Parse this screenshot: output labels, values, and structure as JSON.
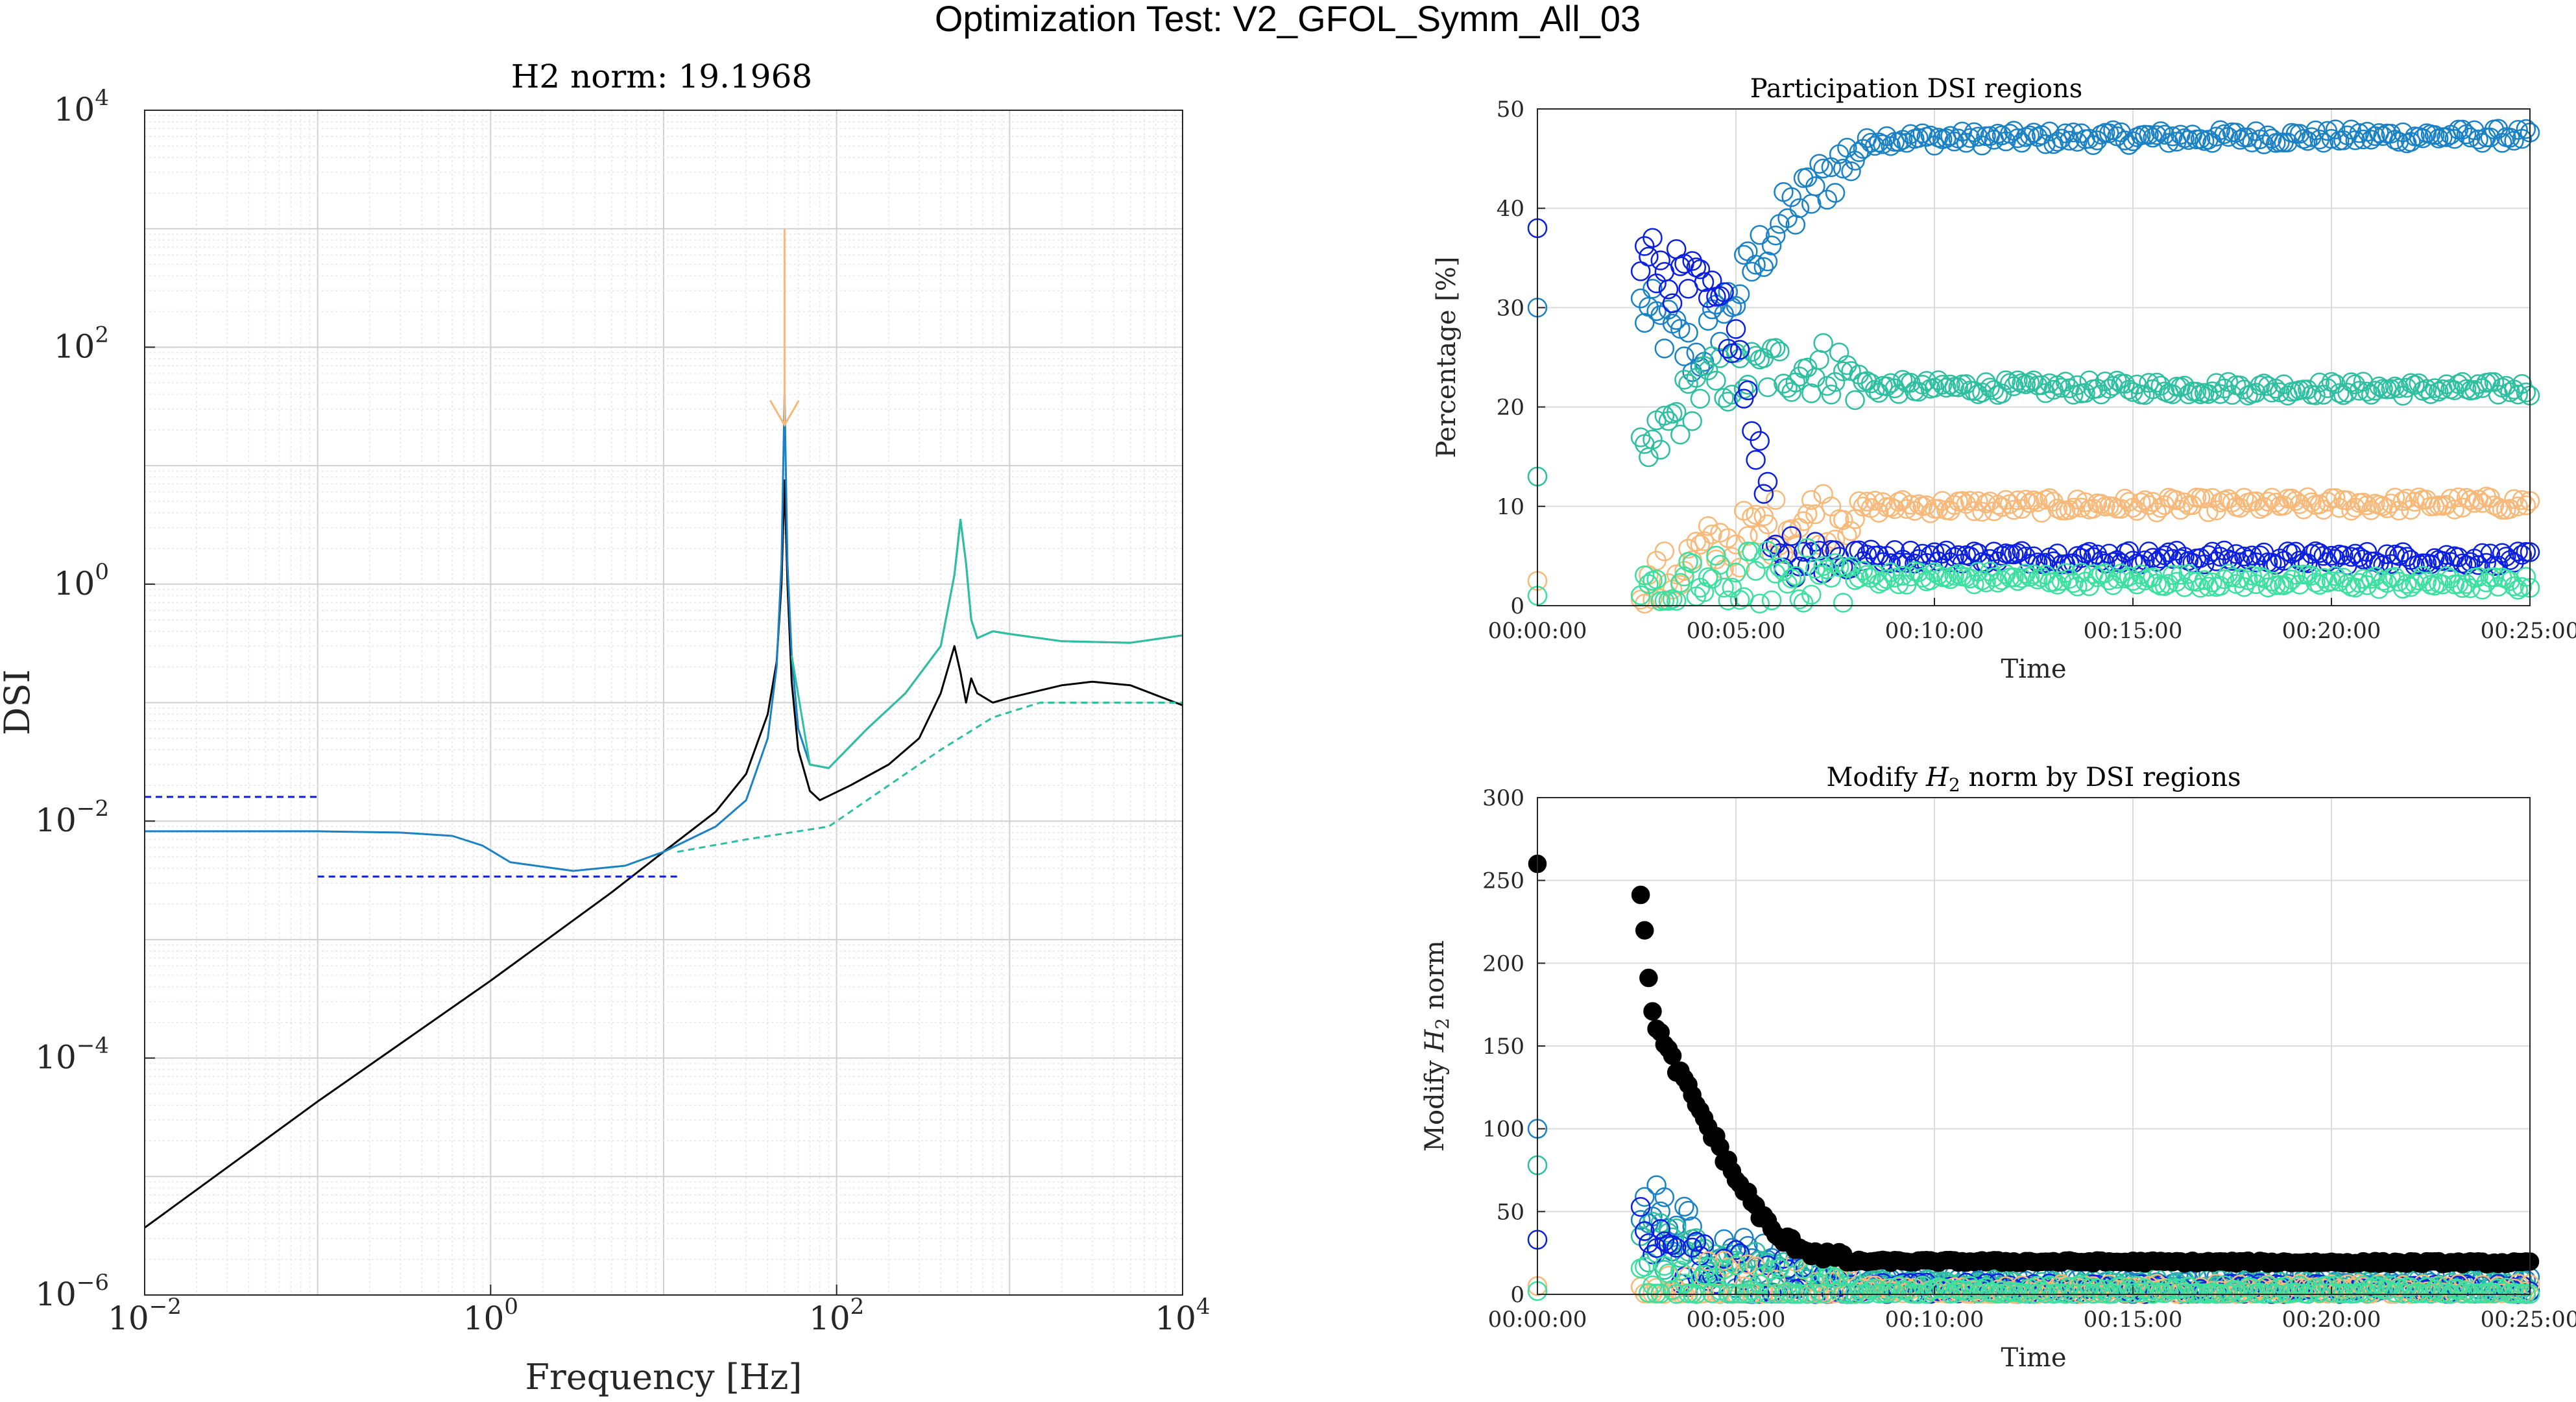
{
  "figure": {
    "title": "Optimization Test: V2_GFOL_Symm_All_03"
  },
  "colors": {
    "c_blue": "#0B1FE0",
    "c_mid": "#1A82C4",
    "c_teal": "#2DBFA0",
    "c_green": "#3BE0A0",
    "c_orange": "#F8B878",
    "c_black": "#000000",
    "grid": "#DCDCDC"
  },
  "chart_data": [
    {
      "id": "dsi",
      "type": "line",
      "title": "H2 norm: 19.1968",
      "xlabel": "Frequency [Hz]",
      "ylabel": "DSI",
      "xscale": "log",
      "yscale": "log",
      "xlim": [
        0.01,
        10000
      ],
      "ylim": [
        1e-06,
        10000
      ],
      "xticks": [
        {
          "v": 0.01,
          "base": "10",
          "exp": "−2"
        },
        {
          "v": 1,
          "base": "10",
          "exp": "0"
        },
        {
          "v": 100,
          "base": "10",
          "exp": "2"
        },
        {
          "v": 10000,
          "base": "10",
          "exp": "4"
        }
      ],
      "yticks": [
        {
          "v": 1e-06,
          "base": "10",
          "exp": "−6"
        },
        {
          "v": 0.0001,
          "base": "10",
          "exp": "−4"
        },
        {
          "v": 0.01,
          "base": "10",
          "exp": "−2"
        },
        {
          "v": 1,
          "base": "10",
          "exp": "0"
        },
        {
          "v": 100,
          "base": "10",
          "exp": "2"
        },
        {
          "v": 10000,
          "base": "10",
          "exp": "4"
        }
      ],
      "grid": true,
      "series": [
        {
          "color": "c_black",
          "style": "solid",
          "points": [
            [
              0.01,
              3.7e-06
            ],
            [
              0.1,
              4.3e-05
            ],
            [
              1,
              0.00045
            ],
            [
              5,
              0.0025
            ],
            [
              10,
              0.0055
            ],
            [
              20,
              0.012
            ],
            [
              30,
              0.025
            ],
            [
              40,
              0.08
            ],
            [
              45,
              0.22
            ],
            [
              48,
              1.0
            ],
            [
              50,
              7.5
            ],
            [
              52,
              1.0
            ],
            [
              55,
              0.15
            ],
            [
              60,
              0.04
            ],
            [
              70,
              0.018
            ],
            [
              80,
              0.015
            ],
            [
              120,
              0.02
            ],
            [
              200,
              0.03
            ],
            [
              300,
              0.05
            ],
            [
              400,
              0.12
            ],
            [
              480,
              0.3
            ],
            [
              520,
              0.18
            ],
            [
              560,
              0.1
            ],
            [
              600,
              0.16
            ],
            [
              650,
              0.12
            ],
            [
              800,
              0.1
            ],
            [
              1000,
              0.11
            ],
            [
              2000,
              0.14
            ],
            [
              3000,
              0.15
            ],
            [
              5000,
              0.14
            ],
            [
              10000,
              0.095
            ]
          ]
        },
        {
          "color": "c_mid",
          "style": "solid",
          "points": [
            [
              0.01,
              0.0082
            ],
            [
              0.1,
              0.0082
            ],
            [
              0.3,
              0.008
            ],
            [
              0.6,
              0.0075
            ],
            [
              0.9,
              0.0062
            ],
            [
              1.3,
              0.0045
            ],
            [
              3,
              0.0038
            ],
            [
              6,
              0.0042
            ],
            [
              10,
              0.0055
            ],
            [
              20,
              0.009
            ],
            [
              30,
              0.015
            ],
            [
              40,
              0.05
            ],
            [
              45,
              0.2
            ],
            [
              48,
              1.5
            ],
            [
              50,
              40
            ],
            [
              52,
              1.5
            ],
            [
              55,
              0.25
            ],
            [
              60,
              0.06
            ],
            [
              70,
              0.03
            ],
            [
              90,
              0.028
            ],
            [
              150,
              0.06
            ],
            [
              250,
              0.12
            ],
            [
              400,
              0.3
            ],
            [
              480,
              1.2
            ],
            [
              520,
              3.5
            ],
            [
              560,
              1.5
            ],
            [
              600,
              0.5
            ],
            [
              650,
              0.35
            ],
            [
              800,
              0.4
            ],
            [
              1000,
              0.38
            ],
            [
              2000,
              0.33
            ],
            [
              5000,
              0.32
            ],
            [
              10000,
              0.37
            ]
          ]
        },
        {
          "color": "c_teal",
          "style": "solid",
          "points": [
            [
              55,
              0.25
            ],
            [
              70,
              0.03
            ],
            [
              90,
              0.028
            ],
            [
              150,
              0.06
            ],
            [
              250,
              0.12
            ],
            [
              400,
              0.3
            ],
            [
              480,
              1.2
            ],
            [
              520,
              3.5
            ],
            [
              560,
              1.5
            ],
            [
              600,
              0.5
            ],
            [
              650,
              0.35
            ],
            [
              800,
              0.4
            ],
            [
              1000,
              0.38
            ],
            [
              2000,
              0.33
            ],
            [
              5000,
              0.32
            ],
            [
              10000,
              0.37
            ]
          ]
        },
        {
          "color": "c_teal",
          "style": "dashed",
          "points": [
            [
              12,
              0.0055
            ],
            [
              30,
              0.007
            ],
            [
              90,
              0.009
            ],
            [
              200,
              0.02
            ],
            [
              400,
              0.04
            ],
            [
              800,
              0.075
            ],
            [
              1500,
              0.1
            ],
            [
              3000,
              0.1
            ],
            [
              10000,
              0.1
            ]
          ]
        },
        {
          "color": "c_blue",
          "style": "dashed",
          "points": [
            [
              0.01,
              0.016
            ],
            [
              0.1,
              0.016
            ]
          ]
        },
        {
          "color": "c_blue",
          "style": "dashed",
          "points": [
            [
              0.1,
              0.0034
            ],
            [
              12,
              0.0034
            ]
          ]
        },
        {
          "color": "c_orange",
          "style": "solid",
          "points": [
            [
              50,
              1000
            ],
            [
              50,
              22
            ]
          ]
        }
      ]
    },
    {
      "id": "participation",
      "type": "scatter",
      "title": "Participation DSI regions",
      "xlabel": "Time",
      "ylabel": "Percentage [%]",
      "xlim": [
        0,
        25
      ],
      "ylim": [
        0,
        50
      ],
      "xunit": "minutes",
      "xticklabels": [
        "00:00:00",
        "00:05:00",
        "00:10:00",
        "00:15:00",
        "00:20:00",
        "00:25:00"
      ],
      "yticks": [
        0,
        10,
        20,
        30,
        40,
        50
      ],
      "grid": true,
      "series": [
        {
          "color": "c_mid",
          "marker": "open-circle",
          "levels": [
            [
              0,
              30
            ],
            [
              2.6,
              30
            ],
            [
              4,
              25
            ],
            [
              6,
              38
            ],
            [
              7.5,
              44
            ],
            [
              8.5,
              47
            ],
            [
              25,
              47.3
            ]
          ],
          "first": 30
        },
        {
          "color": "c_teal",
          "marker": "open-circle",
          "levels": [
            [
              0,
              13
            ],
            [
              2.6,
              14
            ],
            [
              4,
              22
            ],
            [
              6,
              24
            ],
            [
              7.5,
              24
            ],
            [
              8.5,
              22
            ],
            [
              25,
              21.8
            ]
          ],
          "first": 13
        },
        {
          "color": "c_orange",
          "marker": "open-circle",
          "levels": [
            [
              0,
              2.5
            ],
            [
              2.6,
              1
            ],
            [
              4,
              5
            ],
            [
              6,
              8
            ],
            [
              7.5,
              9.5
            ],
            [
              8.5,
              10
            ],
            [
              25,
              10.3
            ]
          ],
          "first": 2.5
        },
        {
          "color": "c_blue",
          "marker": "open-circle",
          "levels": [
            [
              0,
              12
            ],
            [
              2.6,
              35
            ],
            [
              4,
              32
            ],
            [
              5,
              28
            ],
            [
              6,
              6
            ],
            [
              7.5,
              5
            ],
            [
              25,
              4.7
            ]
          ],
          "first": 38
        },
        {
          "color": "c_green",
          "marker": "open-circle",
          "levels": [
            [
              0,
              1
            ],
            [
              2.6,
              0.5
            ],
            [
              4,
              2
            ],
            [
              6,
              3
            ],
            [
              25,
              2.2
            ]
          ],
          "first": 1
        }
      ]
    },
    {
      "id": "modify",
      "type": "scatter",
      "title_prefix": "Modify ",
      "title_var": "H",
      "title_sub": "2",
      "title_suffix": " norm by DSI regions",
      "xlabel": "Time",
      "ylabel_prefix": "Modify ",
      "ylabel_var": "H",
      "ylabel_sub": "2",
      "ylabel_suffix": " norm",
      "xlim": [
        0,
        25
      ],
      "ylim": [
        0,
        300
      ],
      "xunit": "minutes",
      "xticklabels": [
        "00:00:00",
        "00:05:00",
        "00:10:00",
        "00:15:00",
        "00:20:00",
        "00:25:00"
      ],
      "yticks": [
        0,
        50,
        100,
        150,
        200,
        250,
        300
      ],
      "grid": true,
      "series": [
        {
          "color": "c_mid",
          "marker": "open-circle",
          "levels": [
            [
              0,
              30
            ],
            [
              2.6,
              60
            ],
            [
              4,
              30
            ],
            [
              6,
              12
            ],
            [
              8,
              8
            ],
            [
              25,
              7
            ]
          ],
          "first": 100
        },
        {
          "color": "c_teal",
          "marker": "open-circle",
          "levels": [
            [
              0,
              78
            ],
            [
              2.6,
              40
            ],
            [
              4,
              20
            ],
            [
              6,
              8
            ],
            [
              8,
              6
            ],
            [
              25,
              5
            ]
          ],
          "first": 78
        },
        {
          "color": "c_blue",
          "marker": "open-circle",
          "levels": [
            [
              0,
              30
            ],
            [
              2.6,
              35
            ],
            [
              4,
              15
            ],
            [
              6,
              5
            ],
            [
              8,
              3
            ],
            [
              25,
              2
            ]
          ],
          "first": 33
        },
        {
          "color": "c_orange",
          "marker": "open-circle",
          "levels": [
            [
              0,
              5
            ],
            [
              2.6,
              3
            ],
            [
              6,
              2
            ],
            [
              25,
              2
            ]
          ],
          "first": 5
        },
        {
          "color": "c_green",
          "marker": "open-circle",
          "levels": [
            [
              0,
              2
            ],
            [
              2.6,
              1
            ],
            [
              25,
              1
            ]
          ],
          "first": 2
        },
        {
          "color": "c_black",
          "marker": "filled-circle",
          "levels": [
            [
              0,
              260
            ],
            [
              2.6,
              240
            ],
            [
              2.9,
              170
            ],
            [
              3.2,
              150
            ],
            [
              4,
              115
            ],
            [
              5,
              70
            ],
            [
              6,
              35
            ],
            [
              7,
              25
            ],
            [
              8,
              20
            ],
            [
              25,
              19
            ]
          ],
          "first": 260
        }
      ]
    }
  ]
}
